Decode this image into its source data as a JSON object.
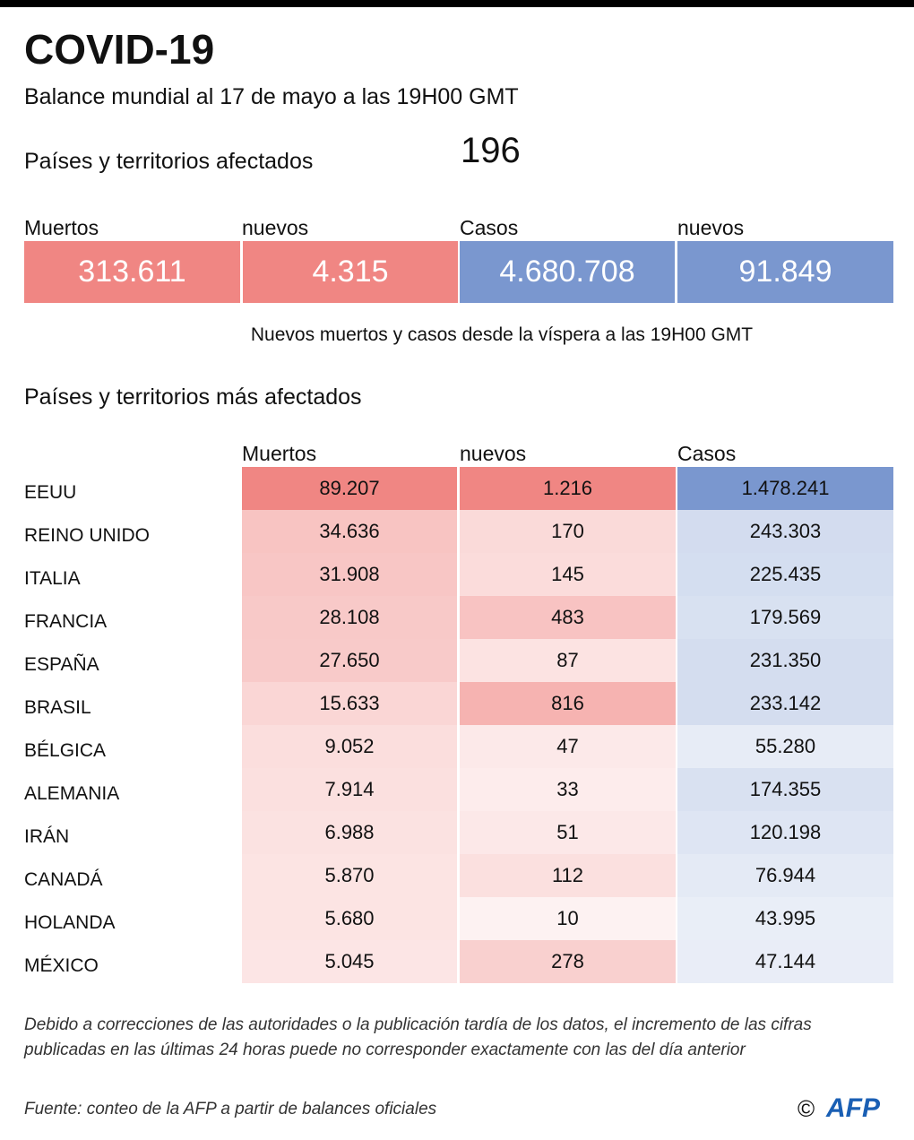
{
  "header": {
    "title": "COVID-19",
    "subtitle": "Balance mundial al 17 de mayo a las 19H00 GMT",
    "affected_label": "Países y territorios afectados",
    "affected_value": "196"
  },
  "summary": {
    "columns": [
      "Muertos",
      "nuevos",
      "Casos",
      "nuevos"
    ],
    "values": [
      "313.611",
      "4.315",
      "4.680.708",
      "91.849"
    ],
    "colors": [
      "#f08683",
      "#f08683",
      "#7a97cf",
      "#7a97cf"
    ],
    "note": "Nuevos muertos y casos desde la víspera a las 19H00 GMT"
  },
  "table": {
    "title": "Países y territorios más afectados",
    "columns": [
      "Muertos",
      "nuevos",
      "Casos"
    ],
    "colors": [
      "#f08683",
      "#f08683",
      "#7a97cf"
    ],
    "rows": [
      [
        "EEUU",
        "89.207",
        "1.216",
        "1.478.241"
      ],
      [
        "REINO UNIDO",
        "34.636",
        "170",
        "243.303"
      ],
      [
        "ITALIA",
        "31.908",
        "145",
        "225.435"
      ],
      [
        "FRANCIA",
        "28.108",
        "483",
        "179.569"
      ],
      [
        "ESPAÑA",
        "27.650",
        "87",
        "231.350"
      ],
      [
        "BRASIL",
        "15.633",
        "816",
        "233.142"
      ],
      [
        "BÉLGICA",
        "9.052",
        "47",
        "55.280"
      ],
      [
        "ALEMANIA",
        "7.914",
        "33",
        "174.355"
      ],
      [
        "IRÁN",
        "6.988",
        "51",
        "120.198"
      ],
      [
        "CANADÁ",
        "5.870",
        "112",
        "76.944"
      ],
      [
        "HOLANDA",
        "5.680",
        "10",
        "43.995"
      ],
      [
        "MÉXICO",
        "5.045",
        "278",
        "47.144"
      ]
    ]
  },
  "footer": {
    "note": [
      "Debido a correcciones de las autoridades o la publicación tardía de los datos, el incremento de las cifras",
      "publicadas en las últimas 24 horas puede no corresponder exactamente con las del día anterior"
    ],
    "source": "Fuente: conteo de la AFP a partir de balances oficiales",
    "copyright": "©",
    "logo": "AFP"
  }
}
